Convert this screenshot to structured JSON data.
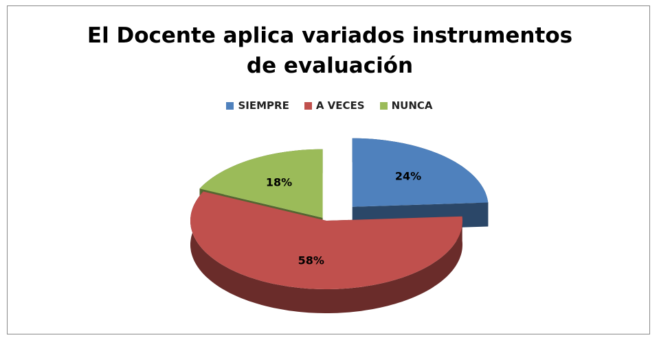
{
  "chart_data": {
    "type": "pie",
    "title": "El Docente  aplica variados instrumentos de evaluación",
    "categories": [
      "SIEMPRE",
      "A VECES",
      "NUNCA"
    ],
    "values": [
      24,
      58,
      18
    ],
    "value_labels": [
      "24%",
      "58%",
      "18%"
    ],
    "colors": [
      "#4f81bd",
      "#c0504d",
      "#9bbb59"
    ],
    "legend": "top"
  }
}
